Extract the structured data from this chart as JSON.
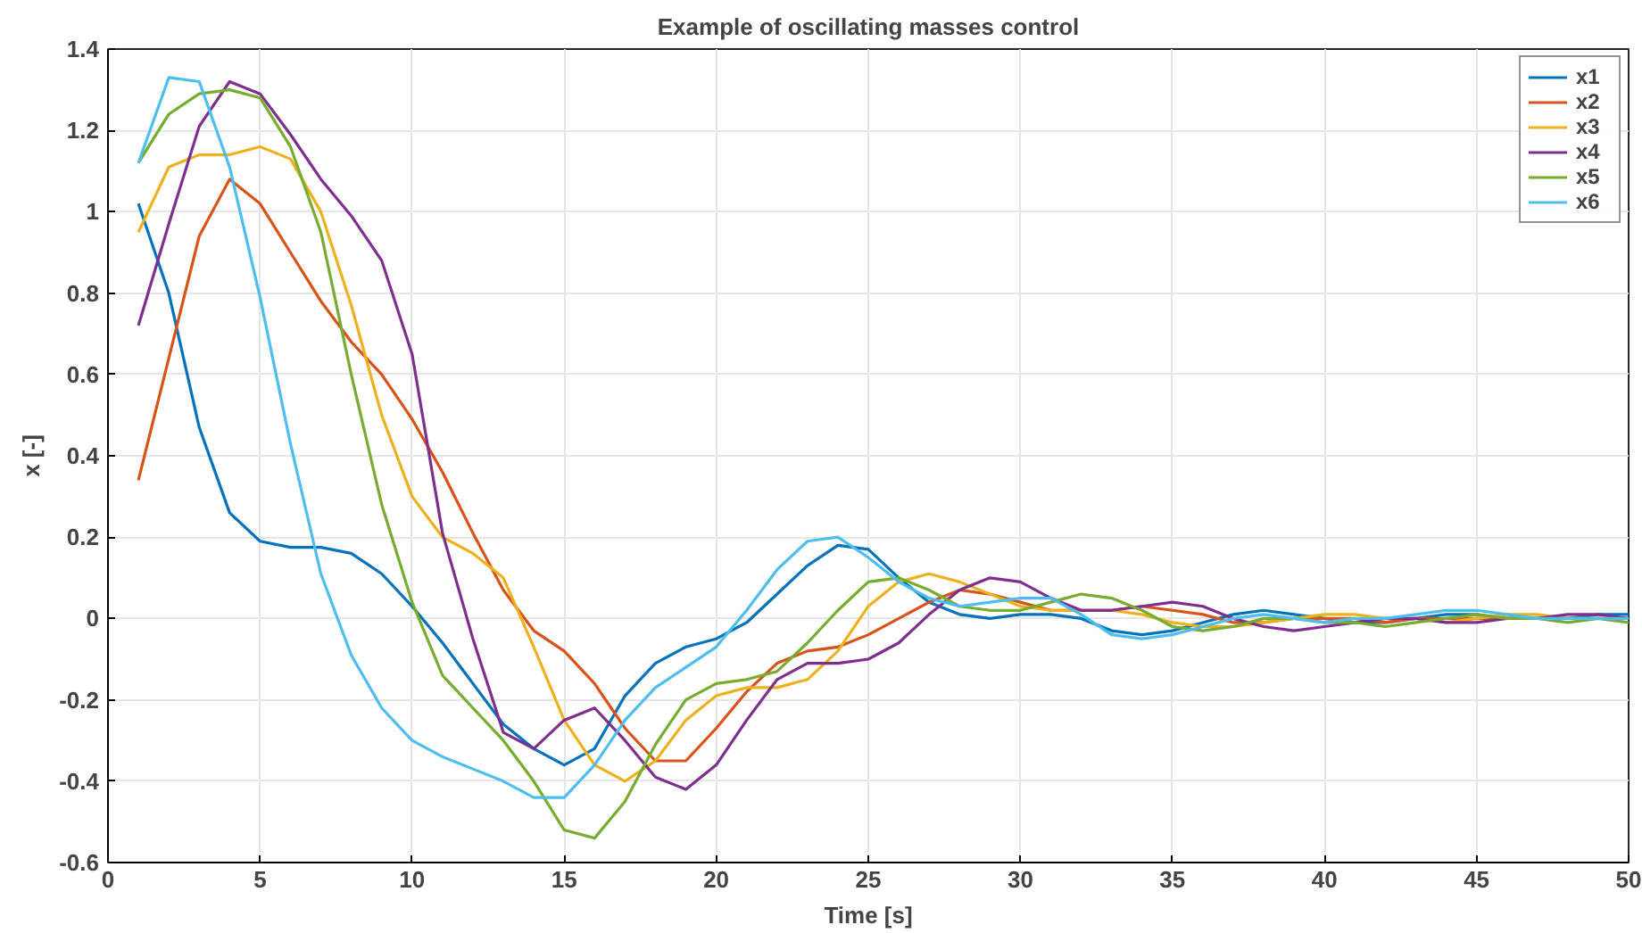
{
  "chart_data": {
    "type": "line",
    "title": "Example of oscillating masses control",
    "xlabel": "Time [s]",
    "ylabel": "x [-]",
    "x": [
      1,
      2,
      3,
      4,
      5,
      6,
      7,
      8,
      9,
      10,
      11,
      12,
      13,
      14,
      15,
      16,
      17,
      18,
      19,
      20,
      21,
      22,
      23,
      24,
      25,
      26,
      27,
      28,
      29,
      30,
      31,
      32,
      33,
      34,
      35,
      36,
      37,
      38,
      39,
      40,
      41,
      42,
      43,
      44,
      45,
      46,
      47,
      48,
      49,
      50
    ],
    "series": [
      {
        "name": "x1",
        "color": "#0072bd",
        "values": [
          1.02,
          0.8,
          0.47,
          0.26,
          0.19,
          0.175,
          0.175,
          0.16,
          0.11,
          0.03,
          -0.06,
          -0.16,
          -0.26,
          -0.32,
          -0.36,
          -0.32,
          -0.19,
          -0.11,
          -0.07,
          -0.05,
          -0.01,
          0.06,
          0.13,
          0.18,
          0.17,
          0.1,
          0.04,
          0.01,
          0.0,
          0.01,
          0.01,
          0.0,
          -0.03,
          -0.04,
          -0.03,
          -0.01,
          0.01,
          0.02,
          0.01,
          0.0,
          -0.01,
          -0.01,
          0.0,
          0.01,
          0.01,
          0.0,
          0.0,
          0.0,
          0.01,
          0.01
        ]
      },
      {
        "name": "x2",
        "color": "#d95319",
        "values": [
          0.34,
          0.64,
          0.94,
          1.08,
          1.02,
          0.9,
          0.78,
          0.68,
          0.6,
          0.49,
          0.36,
          0.21,
          0.07,
          -0.03,
          -0.08,
          -0.16,
          -0.27,
          -0.35,
          -0.35,
          -0.27,
          -0.18,
          -0.11,
          -0.08,
          -0.07,
          -0.04,
          0.0,
          0.04,
          0.07,
          0.06,
          0.04,
          0.02,
          0.02,
          0.02,
          0.03,
          0.02,
          0.01,
          -0.01,
          -0.01,
          0.0,
          0.0,
          0.0,
          -0.01,
          0.0,
          0.0,
          0.0,
          0.0,
          0.0,
          0.0,
          0.0,
          0.0
        ]
      },
      {
        "name": "x3",
        "color": "#edb120",
        "values": [
          0.95,
          1.11,
          1.14,
          1.14,
          1.16,
          1.13,
          1.0,
          0.77,
          0.5,
          0.3,
          0.2,
          0.16,
          0.1,
          -0.07,
          -0.25,
          -0.36,
          -0.4,
          -0.35,
          -0.25,
          -0.19,
          -0.17,
          -0.17,
          -0.15,
          -0.08,
          0.03,
          0.09,
          0.11,
          0.09,
          0.06,
          0.03,
          0.02,
          0.02,
          0.02,
          0.01,
          -0.01,
          -0.02,
          -0.02,
          -0.01,
          0.0,
          0.01,
          0.01,
          0.0,
          0.0,
          -0.01,
          0.0,
          0.01,
          0.01,
          0.0,
          0.0,
          0.0
        ]
      },
      {
        "name": "x4",
        "color": "#7e2f8e",
        "values": [
          0.72,
          0.97,
          1.21,
          1.32,
          1.29,
          1.19,
          1.08,
          0.99,
          0.88,
          0.65,
          0.21,
          -0.05,
          -0.28,
          -0.32,
          -0.25,
          -0.22,
          -0.3,
          -0.39,
          -0.42,
          -0.36,
          -0.25,
          -0.15,
          -0.11,
          -0.11,
          -0.1,
          -0.06,
          0.01,
          0.07,
          0.1,
          0.09,
          0.05,
          0.02,
          0.02,
          0.03,
          0.04,
          0.03,
          0.0,
          -0.02,
          -0.03,
          -0.02,
          -0.01,
          0.0,
          0.0,
          -0.01,
          -0.01,
          0.0,
          0.0,
          0.01,
          0.01,
          0.0
        ]
      },
      {
        "name": "x5",
        "color": "#77ac30",
        "values": [
          1.12,
          1.24,
          1.29,
          1.3,
          1.28,
          1.16,
          0.95,
          0.6,
          0.28,
          0.04,
          -0.14,
          -0.22,
          -0.3,
          -0.4,
          -0.52,
          -0.54,
          -0.45,
          -0.31,
          -0.2,
          -0.16,
          -0.15,
          -0.13,
          -0.06,
          0.02,
          0.09,
          0.1,
          0.07,
          0.03,
          0.02,
          0.02,
          0.04,
          0.06,
          0.05,
          0.02,
          -0.02,
          -0.03,
          -0.02,
          0.0,
          0.0,
          -0.01,
          -0.01,
          -0.02,
          -0.01,
          0.0,
          0.01,
          0.0,
          0.0,
          -0.01,
          0.0,
          -0.01
        ]
      },
      {
        "name": "x6",
        "color": "#4dbeee",
        "values": [
          1.12,
          1.33,
          1.32,
          1.11,
          0.79,
          0.43,
          0.11,
          -0.09,
          -0.22,
          -0.3,
          -0.34,
          -0.37,
          -0.4,
          -0.44,
          -0.44,
          -0.36,
          -0.25,
          -0.17,
          -0.12,
          -0.07,
          0.02,
          0.12,
          0.19,
          0.2,
          0.15,
          0.09,
          0.05,
          0.03,
          0.04,
          0.05,
          0.05,
          0.01,
          -0.04,
          -0.05,
          -0.04,
          -0.02,
          0.0,
          0.01,
          0.0,
          -0.01,
          0.0,
          0.0,
          0.01,
          0.02,
          0.02,
          0.01,
          0.0,
          0.0,
          0.0,
          0.0
        ]
      }
    ],
    "xlim": [
      0,
      50
    ],
    "ylim": [
      -0.6,
      1.4
    ],
    "xticks": [
      0,
      5,
      10,
      15,
      20,
      25,
      30,
      35,
      40,
      45,
      50
    ],
    "yticks": [
      -0.6,
      -0.4,
      -0.2,
      0,
      0.2,
      0.4,
      0.6,
      0.8,
      1,
      1.2,
      1.4
    ],
    "grid": true,
    "legend": "top right",
    "marker": "none",
    "line_style": "solid"
  }
}
